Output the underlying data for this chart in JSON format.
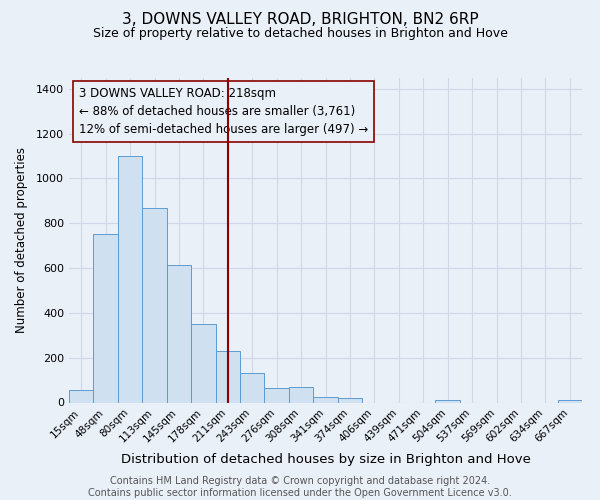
{
  "title": "3, DOWNS VALLEY ROAD, BRIGHTON, BN2 6RP",
  "subtitle": "Size of property relative to detached houses in Brighton and Hove",
  "xlabel": "Distribution of detached houses by size in Brighton and Hove",
  "ylabel": "Number of detached properties",
  "bar_labels": [
    "15sqm",
    "48sqm",
    "80sqm",
    "113sqm",
    "145sqm",
    "178sqm",
    "211sqm",
    "243sqm",
    "276sqm",
    "308sqm",
    "341sqm",
    "374sqm",
    "406sqm",
    "439sqm",
    "471sqm",
    "504sqm",
    "537sqm",
    "569sqm",
    "602sqm",
    "634sqm",
    "667sqm"
  ],
  "bar_heights": [
    55,
    750,
    1100,
    870,
    615,
    350,
    230,
    130,
    65,
    70,
    25,
    20,
    0,
    0,
    0,
    10,
    0,
    0,
    0,
    0,
    10
  ],
  "bar_color": "#cfe0f0",
  "bar_edgecolor": "#5b9bd5",
  "ylim": [
    0,
    1450
  ],
  "yticks": [
    0,
    200,
    400,
    600,
    800,
    1000,
    1200,
    1400
  ],
  "vline_x_index": 6,
  "vline_color": "#8b0000",
  "annotation_line1": "3 DOWNS VALLEY ROAD: 218sqm",
  "annotation_line2": "← 88% of detached houses are smaller (3,761)",
  "annotation_line3": "12% of semi-detached houses are larger (497) →",
  "annotation_box_edgecolor": "#8b0000",
  "annotation_fontsize": 8.5,
  "grid_color": "#d0d8e8",
  "background_color": "#eaf0f8",
  "footer_text": "Contains HM Land Registry data © Crown copyright and database right 2024.\nContains public sector information licensed under the Open Government Licence v3.0.",
  "title_fontsize": 11,
  "subtitle_fontsize": 9,
  "xlabel_fontsize": 9.5,
  "ylabel_fontsize": 8.5,
  "footer_fontsize": 7,
  "tick_fontsize": 7.5,
  "ytick_fontsize": 8
}
